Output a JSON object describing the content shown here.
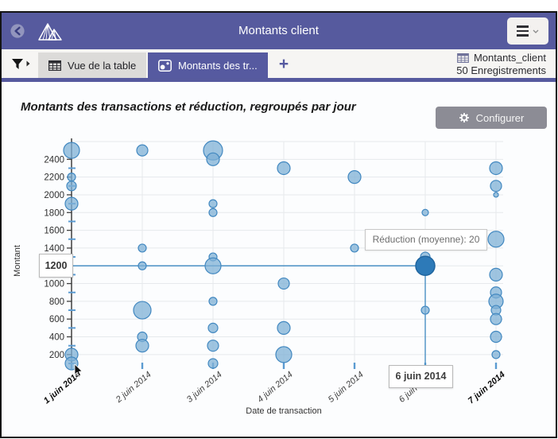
{
  "window": {
    "header": {
      "title": "Montants client",
      "back_icon": "back-circle-arrow",
      "logo_icon": "mountains-logo",
      "menu_icon": "hamburger-with-chevron"
    },
    "tabbar": {
      "filter_icon": "funnel",
      "tabs": [
        {
          "label": "Vue de la table",
          "icon": "table-grid",
          "active": false
        },
        {
          "label": "Montants des tr...",
          "icon": "scatter-chart",
          "active": true
        }
      ],
      "add_tab_label": "+",
      "source": {
        "icon": "table-grid",
        "name": "Montants_client",
        "records": "50 Enregistrements"
      }
    },
    "content": {
      "chart_title": "Montants des transactions et réduction, regroupés par jour",
      "configure_button": {
        "label": "Configurer",
        "icon": "gear"
      }
    }
  },
  "chart_data": {
    "type": "scatter",
    "title": "Montants des transactions et réduction, regroupés par jour",
    "xlabel": "Date de transaction",
    "ylabel": "Montant",
    "x_categories": [
      "1 juin 2014",
      "2 juin 2014",
      "3 juin 2014",
      "4 juin 2014",
      "5 juin 2014",
      "6 juin 2014",
      "7 juin 2014"
    ],
    "emphasized_days": [
      1,
      7
    ],
    "y_major_ticks": [
      200,
      400,
      600,
      800,
      1000,
      1200,
      1400,
      1600,
      1800,
      2000,
      2200,
      2400
    ],
    "y_minor_ticks": [
      100,
      300,
      500,
      700,
      900,
      1100,
      1300,
      1500,
      1700,
      1900,
      2100,
      2300
    ],
    "ylim": [
      100,
      2600
    ],
    "grid": true,
    "points": [
      {
        "x": 1,
        "y": 2500,
        "r": 10
      },
      {
        "x": 1,
        "y": 2200,
        "r": 5
      },
      {
        "x": 1,
        "y": 2100,
        "r": 6
      },
      {
        "x": 1,
        "y": 1900,
        "r": 8
      },
      {
        "x": 1,
        "y": 200,
        "r": 8
      },
      {
        "x": 1,
        "y": 100,
        "r": 8
      },
      {
        "x": 2,
        "y": 2500,
        "r": 7
      },
      {
        "x": 2,
        "y": 1400,
        "r": 5
      },
      {
        "x": 2,
        "y": 1200,
        "r": 5
      },
      {
        "x": 2,
        "y": 700,
        "r": 11
      },
      {
        "x": 2,
        "y": 400,
        "r": 6
      },
      {
        "x": 2,
        "y": 300,
        "r": 8
      },
      {
        "x": 3,
        "y": 2500,
        "r": 12
      },
      {
        "x": 3,
        "y": 2400,
        "r": 8
      },
      {
        "x": 3,
        "y": 1900,
        "r": 5
      },
      {
        "x": 3,
        "y": 1800,
        "r": 5
      },
      {
        "x": 3,
        "y": 1300,
        "r": 5
      },
      {
        "x": 3,
        "y": 1200,
        "r": 10
      },
      {
        "x": 3,
        "y": 800,
        "r": 5
      },
      {
        "x": 3,
        "y": 500,
        "r": 6
      },
      {
        "x": 3,
        "y": 300,
        "r": 7
      },
      {
        "x": 3,
        "y": 100,
        "r": 6
      },
      {
        "x": 4,
        "y": 2300,
        "r": 8
      },
      {
        "x": 4,
        "y": 1000,
        "r": 7
      },
      {
        "x": 4,
        "y": 500,
        "r": 8
      },
      {
        "x": 4,
        "y": 200,
        "r": 10
      },
      {
        "x": 5,
        "y": 2200,
        "r": 8
      },
      {
        "x": 5,
        "y": 1400,
        "r": 5
      },
      {
        "x": 6,
        "y": 1800,
        "r": 4
      },
      {
        "x": 6,
        "y": 1300,
        "r": 6
      },
      {
        "x": 6,
        "y": 700,
        "r": 5
      },
      {
        "x": 7,
        "y": 2300,
        "r": 8
      },
      {
        "x": 7,
        "y": 2100,
        "r": 7
      },
      {
        "x": 7,
        "y": 2000,
        "r": 3
      },
      {
        "x": 7,
        "y": 1500,
        "r": 10
      },
      {
        "x": 7,
        "y": 1100,
        "r": 8
      },
      {
        "x": 7,
        "y": 900,
        "r": 7
      },
      {
        "x": 7,
        "y": 800,
        "r": 9
      },
      {
        "x": 7,
        "y": 700,
        "r": 6
      },
      {
        "x": 7,
        "y": 600,
        "r": 7
      },
      {
        "x": 7,
        "y": 400,
        "r": 7
      },
      {
        "x": 7,
        "y": 200,
        "r": 5
      }
    ],
    "selected_point": {
      "x": 6,
      "y": 1200,
      "r": 12
    },
    "crosshair": {
      "y_label": "1200",
      "x_label": "6 juin 2014"
    },
    "tooltip": "Réduction (moyenne): 20",
    "colors": {
      "bubble_fill": "#7fb0d6",
      "bubble_stroke": "#4288c0",
      "selected_fill": "#2d7ab8",
      "selected_stroke": "#20659f",
      "crosshair": "#4a90c4",
      "grid": "#e6e9ec",
      "axis": "#3f3f3f",
      "minor_tick": "#5b9bd1",
      "tick_label": "#2f2f2f",
      "accent": "#565a9e"
    }
  }
}
